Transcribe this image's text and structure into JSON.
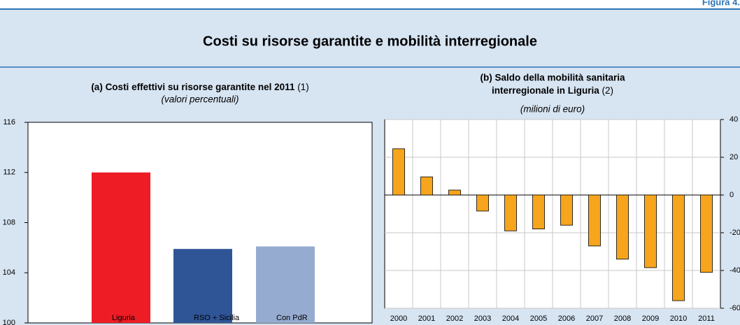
{
  "figure_label": "Figura 4.",
  "title": "Costi su risorse garantite e mobilità interregionale",
  "chart_data": [
    {
      "type": "bar",
      "title": "(a) Costi effettivi su risorse garantite nel 2011",
      "title_note": "(1)",
      "subtitle": "(valori percentuali)",
      "series": [
        {
          "name": "Liguria",
          "color": "#ee1c25",
          "values": [
            112
          ]
        },
        {
          "name": "RSO + Sicilia",
          "color": "#2f5597",
          "values": [
            105.9
          ]
        },
        {
          "name": "Con PdR",
          "color": "#96abd0",
          "values": [
            106.1
          ]
        }
      ],
      "ylim": [
        100,
        116
      ],
      "yticks": [
        100,
        104,
        108,
        112,
        116
      ],
      "grid": false,
      "legend": "bottom"
    },
    {
      "type": "bar",
      "title_lines": [
        "(b) Saldo della mobilità sanitaria",
        "interregionale in Liguria"
      ],
      "title_note": "(2)",
      "subtitle": "(milioni di euro)",
      "categories": [
        "2000",
        "2001",
        "2002",
        "2003",
        "2004",
        "2005",
        "2006",
        "2007",
        "2008",
        "2009",
        "2010",
        "2011"
      ],
      "values": [
        24.5,
        9.6,
        2.6,
        -8.5,
        -19,
        -18,
        -16,
        -27,
        -34,
        -38.5,
        -56,
        -41
      ],
      "color": "#f7a51c",
      "ylim": [
        -60,
        40
      ],
      "yticks": [
        -60,
        -40,
        -20,
        0,
        20,
        40
      ],
      "grid": true,
      "yaxis_side": "right"
    }
  ]
}
